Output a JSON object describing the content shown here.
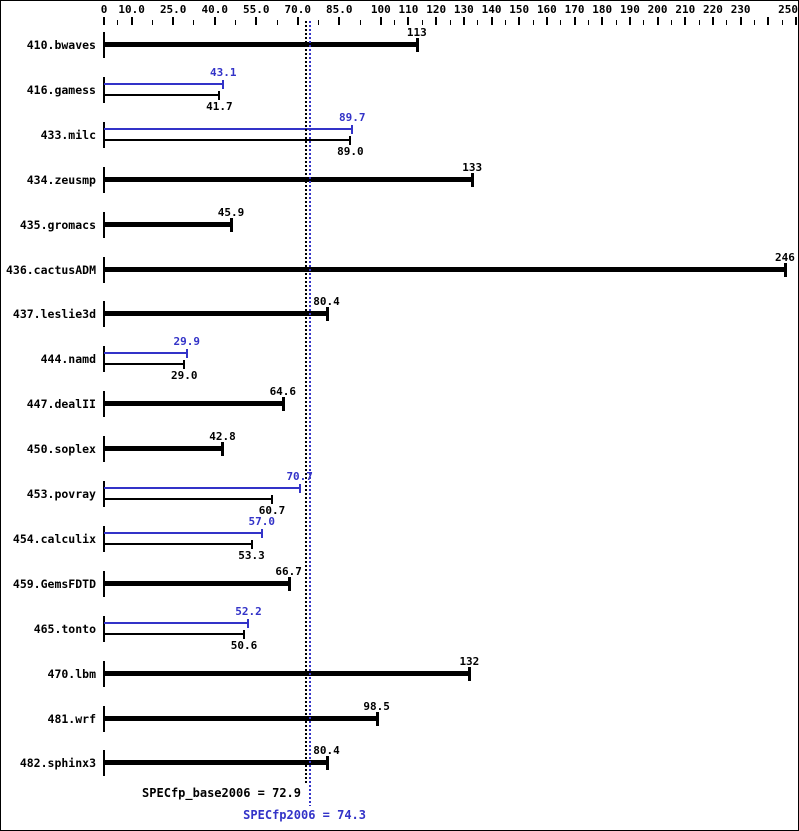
{
  "chart_data": {
    "type": "bar",
    "orientation": "horizontal",
    "legend": "none",
    "grid": false,
    "axis": {
      "min": 0,
      "max": 250,
      "position": "top",
      "major_ticks": [
        0,
        10,
        25,
        40,
        55,
        70,
        85,
        100,
        110,
        120,
        130,
        140,
        150,
        160,
        170,
        180,
        190,
        200,
        210,
        220,
        230,
        240,
        250
      ],
      "tick_labels": [
        {
          "v": 0,
          "label": "0"
        },
        {
          "v": 10,
          "label": "10.0"
        },
        {
          "v": 25,
          "label": "25.0"
        },
        {
          "v": 40,
          "label": "40.0"
        },
        {
          "v": 55,
          "label": "55.0"
        },
        {
          "v": 70,
          "label": "70.0"
        },
        {
          "v": 85,
          "label": "85.0"
        },
        {
          "v": 100,
          "label": "100"
        },
        {
          "v": 110,
          "label": "110"
        },
        {
          "v": 120,
          "label": "120"
        },
        {
          "v": 130,
          "label": "130"
        },
        {
          "v": 140,
          "label": "140"
        },
        {
          "v": 150,
          "label": "150"
        },
        {
          "v": 160,
          "label": "160"
        },
        {
          "v": 170,
          "label": "170"
        },
        {
          "v": 180,
          "label": "180"
        },
        {
          "v": 190,
          "label": "190"
        },
        {
          "v": 200,
          "label": "200"
        },
        {
          "v": 210,
          "label": "210"
        },
        {
          "v": 220,
          "label": "220"
        },
        {
          "v": 230,
          "label": "230"
        },
        {
          "v": 250,
          "label": "250"
        }
      ]
    },
    "series": [
      {
        "name": "peak",
        "color": "#3333c8"
      },
      {
        "name": "base",
        "color": "#000000"
      }
    ],
    "benchmarks": [
      {
        "name": "410.bwaves",
        "base": 113,
        "base_label": "113",
        "peak": null,
        "peak_label": null
      },
      {
        "name": "416.gamess",
        "base": 41.7,
        "base_label": "41.7",
        "peak": 43.1,
        "peak_label": "43.1"
      },
      {
        "name": "433.milc",
        "base": 89.0,
        "base_label": "89.0",
        "peak": 89.7,
        "peak_label": "89.7"
      },
      {
        "name": "434.zeusmp",
        "base": 133,
        "base_label": "133",
        "peak": null,
        "peak_label": null
      },
      {
        "name": "435.gromacs",
        "base": 45.9,
        "base_label": "45.9",
        "peak": null,
        "peak_label": null
      },
      {
        "name": "436.cactusADM",
        "base": 246,
        "base_label": "246",
        "peak": null,
        "peak_label": null
      },
      {
        "name": "437.leslie3d",
        "base": 80.4,
        "base_label": "80.4",
        "peak": null,
        "peak_label": null
      },
      {
        "name": "444.namd",
        "base": 29.0,
        "base_label": "29.0",
        "peak": 29.9,
        "peak_label": "29.9"
      },
      {
        "name": "447.dealII",
        "base": 64.6,
        "base_label": "64.6",
        "peak": null,
        "peak_label": null
      },
      {
        "name": "450.soplex",
        "base": 42.8,
        "base_label": "42.8",
        "peak": null,
        "peak_label": null
      },
      {
        "name": "453.povray",
        "base": 60.7,
        "base_label": "60.7",
        "peak": 70.7,
        "peak_label": "70.7"
      },
      {
        "name": "454.calculix",
        "base": 53.3,
        "base_label": "53.3",
        "peak": 57.0,
        "peak_label": "57.0"
      },
      {
        "name": "459.GemsFDTD",
        "base": 66.7,
        "base_label": "66.7",
        "peak": null,
        "peak_label": null
      },
      {
        "name": "465.tonto",
        "base": 50.6,
        "base_label": "50.6",
        "peak": 52.2,
        "peak_label": "52.2"
      },
      {
        "name": "470.lbm",
        "base": 132,
        "base_label": "132",
        "peak": null,
        "peak_label": null
      },
      {
        "name": "481.wrf",
        "base": 98.5,
        "base_label": "98.5",
        "peak": null,
        "peak_label": null
      },
      {
        "name": "482.sphinx3",
        "base": 80.4,
        "base_label": "80.4",
        "peak": null,
        "peak_label": null
      }
    ],
    "means": {
      "base": {
        "value": 72.9,
        "label": "SPECfp_base2006 = 72.9"
      },
      "peak": {
        "value": 74.3,
        "label": "SPECfp2006 = 74.3"
      }
    },
    "colors": {
      "base": "#000000",
      "peak": "#3333c8",
      "background": "#ffffff",
      "border": "#000000"
    }
  }
}
